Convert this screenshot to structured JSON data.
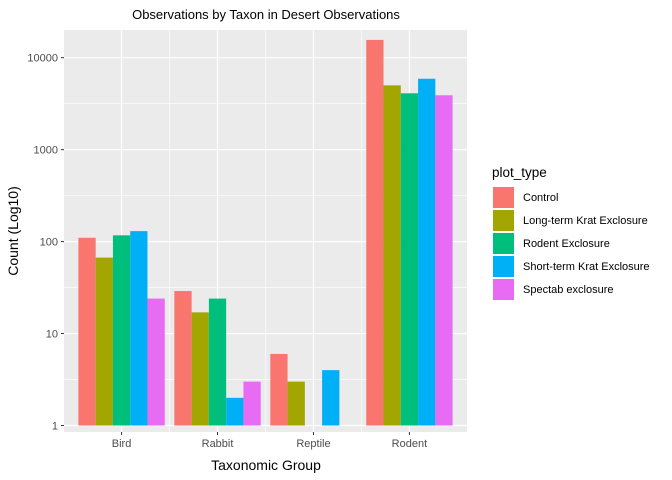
{
  "chart_data": {
    "type": "bar",
    "title": "Observations by Taxon in Desert Observations",
    "xlabel": "Taxonomic Group",
    "ylabel": "Count (Log10)",
    "yscale": "log10",
    "ylim": [
      0.85,
      20000
    ],
    "y_ticks": [
      1,
      10,
      100,
      1000,
      10000
    ],
    "y_tick_labels": [
      "1",
      "10",
      "100",
      "1000",
      "10000"
    ],
    "categories": [
      "Bird",
      "Rabbit",
      "Reptile",
      "Rodent"
    ],
    "legend_title": "plot_type",
    "legend_position": "right",
    "grid": true,
    "series": [
      {
        "name": "Control",
        "color": "#F8766D",
        "values": [
          110,
          29,
          6,
          15600
        ]
      },
      {
        "name": "Long-term Krat Exclosure",
        "color": "#A3A500",
        "values": [
          67,
          17,
          3,
          5000
        ]
      },
      {
        "name": "Rodent Exclosure",
        "color": "#00BF7D",
        "values": [
          117,
          24,
          null,
          4100
        ]
      },
      {
        "name": "Short-term Krat Exclosure",
        "color": "#00B0F6",
        "values": [
          130,
          2,
          4,
          5900
        ]
      },
      {
        "name": "Spectab exclosure",
        "color": "#E76BF3",
        "values": [
          24,
          3,
          null,
          3900
        ]
      }
    ]
  }
}
